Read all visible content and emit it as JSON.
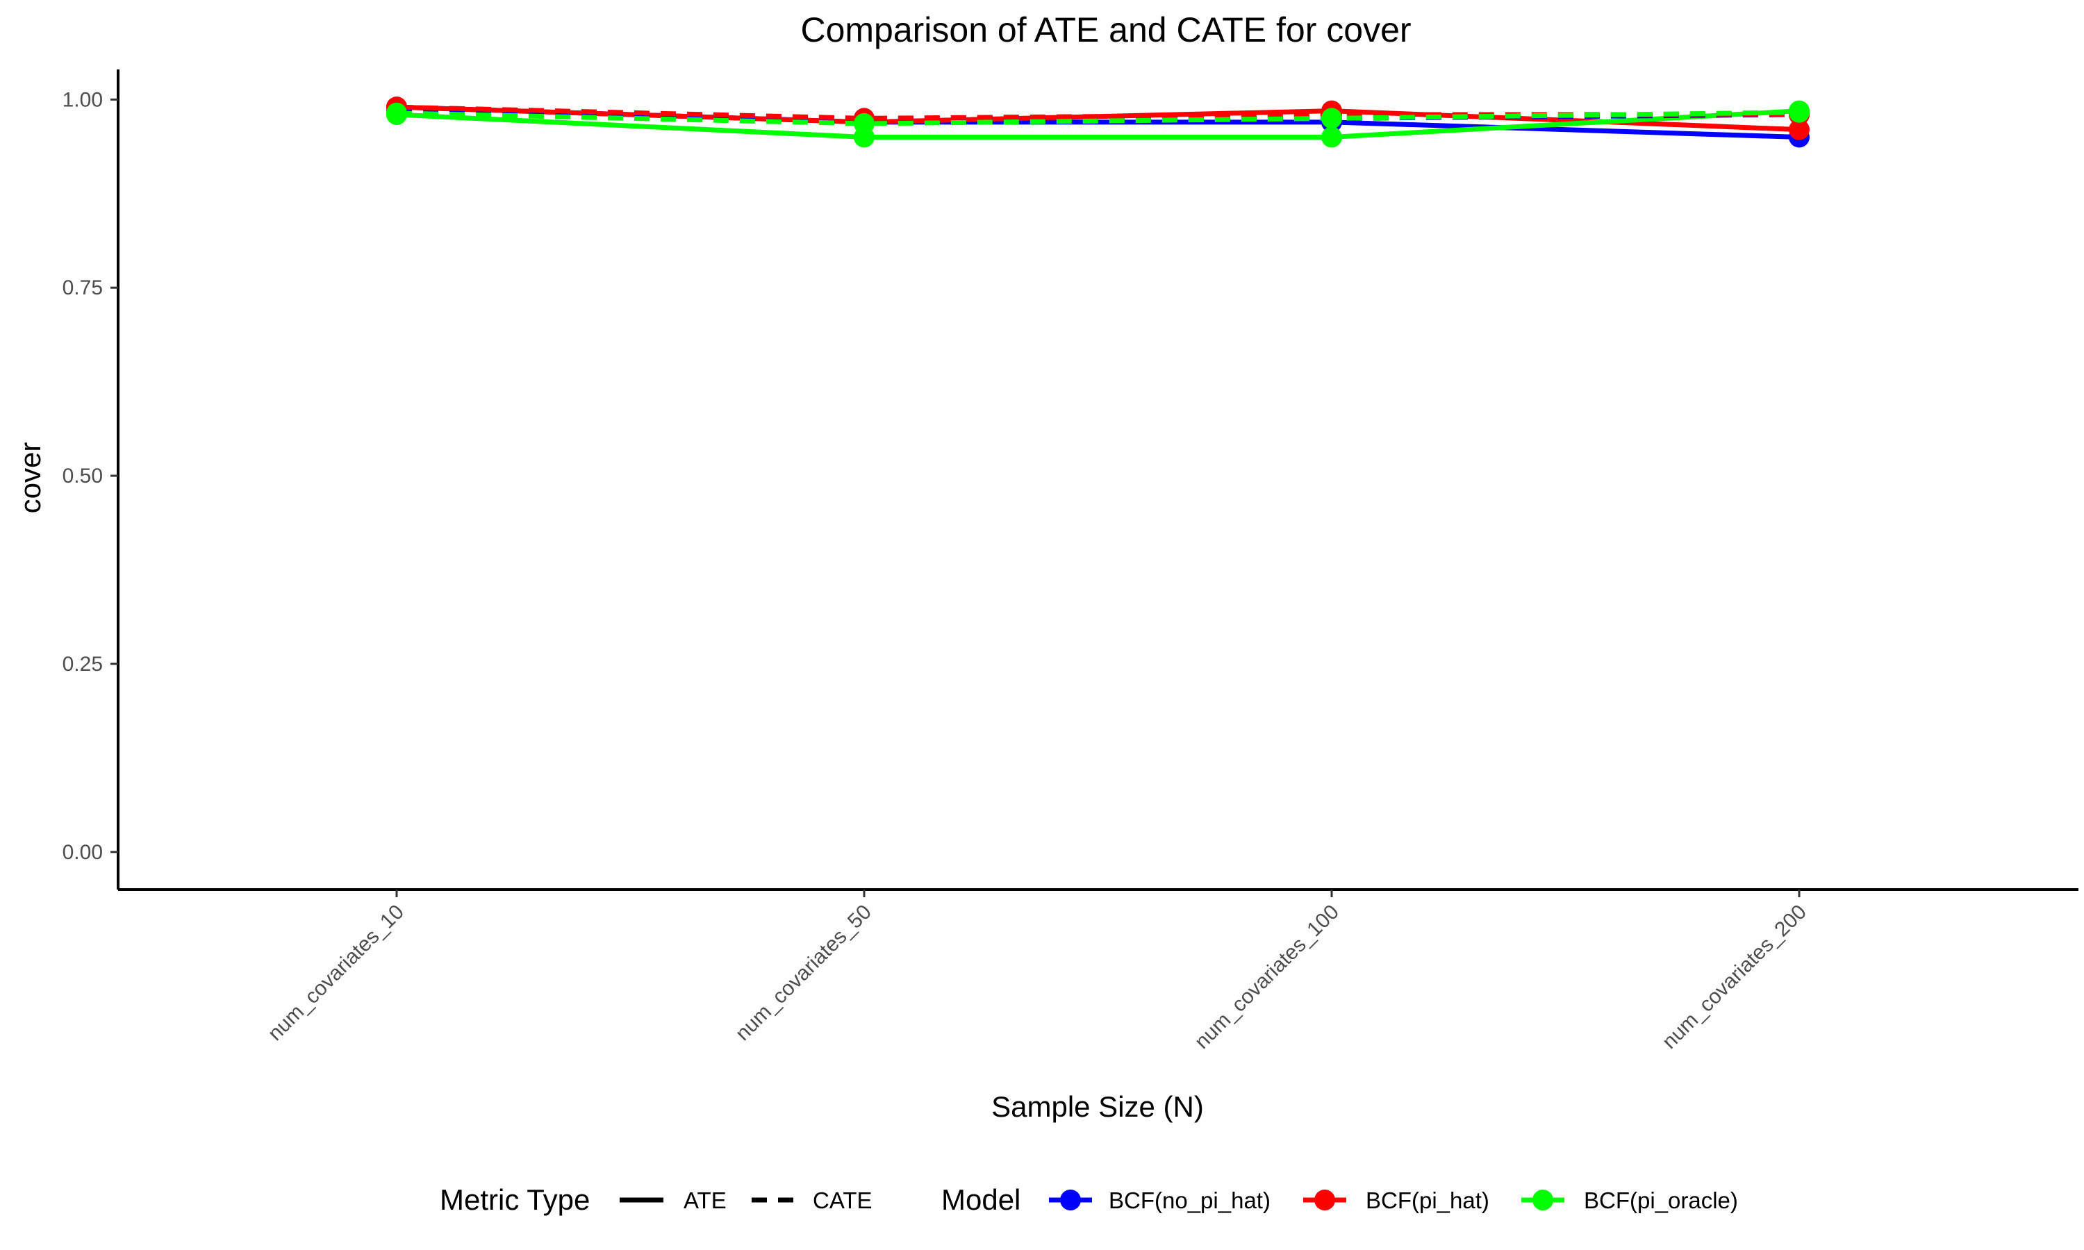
{
  "chart_data": {
    "type": "line",
    "title": "Comparison of ATE and CATE for cover",
    "xlabel": "Sample Size (N)",
    "ylabel": "cover",
    "categories": [
      "num_covariates_10",
      "num_covariates_50",
      "num_covariates_100",
      "num_covariates_200"
    ],
    "ylim": [
      -0.05,
      1.04
    ],
    "yticks": [
      0.0,
      0.25,
      0.5,
      0.75,
      1.0
    ],
    "ytick_labels": [
      "0.00",
      "0.25",
      "0.50",
      "0.75",
      "1.00"
    ],
    "grid": false,
    "legend_position": "bottom",
    "series": [
      {
        "model": "BCF(no_pi_hat)",
        "metric": "ATE",
        "color": "#0000ff",
        "values": [
          0.99,
          0.97,
          0.97,
          0.95
        ]
      },
      {
        "model": "BCF(pi_hat)",
        "metric": "ATE",
        "color": "#ff0000",
        "values": [
          0.99,
          0.97,
          0.985,
          0.96
        ]
      },
      {
        "model": "BCF(pi_oracle)",
        "metric": "ATE",
        "color": "#00ff00",
        "values": [
          0.98,
          0.95,
          0.95,
          0.985
        ]
      },
      {
        "model": "BCF(no_pi_hat)",
        "metric": "CATE",
        "color": "#0000ff",
        "values": [
          0.985,
          0.975,
          0.975,
          0.98
        ]
      },
      {
        "model": "BCF(pi_hat)",
        "metric": "CATE",
        "color": "#ff0000",
        "values": [
          0.99,
          0.975,
          0.98,
          0.98
        ]
      },
      {
        "model": "BCF(pi_oracle)",
        "metric": "CATE",
        "color": "#00ff00",
        "values": [
          0.982,
          0.968,
          0.975,
          0.983
        ]
      }
    ],
    "legend": {
      "metric_title": "Metric Type",
      "metric_items": [
        {
          "label": "ATE",
          "linetype": "solid"
        },
        {
          "label": "CATE",
          "linetype": "dashed"
        }
      ],
      "model_title": "Model",
      "model_items": [
        {
          "label": "BCF(no_pi_hat)",
          "color": "#0000ff"
        },
        {
          "label": "BCF(pi_hat)",
          "color": "#ff0000"
        },
        {
          "label": "BCF(pi_oracle)",
          "color": "#00ff00"
        }
      ]
    }
  }
}
